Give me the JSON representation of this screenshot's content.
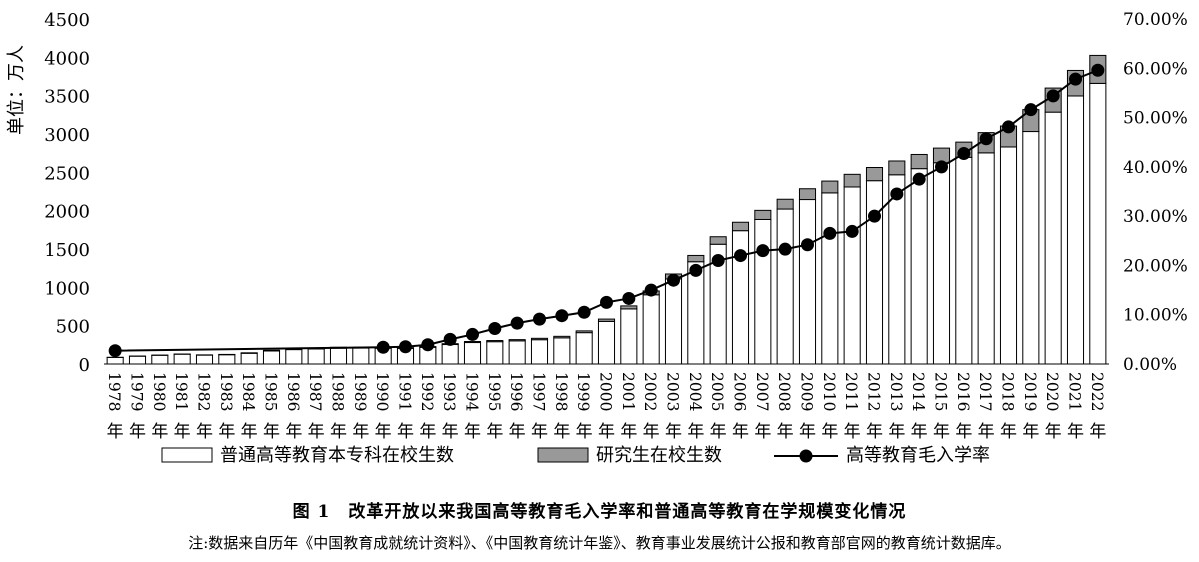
{
  "chart_data": {
    "type": "bar",
    "stacked": true,
    "categories": [
      "1978年",
      "1979年",
      "1980年",
      "1981年",
      "1982年",
      "1983年",
      "1984年",
      "1985年",
      "1986年",
      "1987年",
      "1988年",
      "1989年",
      "1990年",
      "1991年",
      "1992年",
      "1993年",
      "1994年",
      "1995年",
      "1996年",
      "1997年",
      "1998年",
      "1999年",
      "2000年",
      "2001年",
      "2002年",
      "2003年",
      "2004年",
      "2005年",
      "2006年",
      "2007年",
      "2008年",
      "2009年",
      "2010年",
      "2011年",
      "2012年",
      "2013年",
      "2014年",
      "2015年",
      "2016年",
      "2017年",
      "2018年",
      "2019年",
      "2020年",
      "2021年",
      "2022年"
    ],
    "series": [
      {
        "name": "普通高等教育本专科在校生数",
        "type": "bar",
        "axis": "left",
        "color": "#ffffff",
        "values": [
          86,
          102,
          114,
          128,
          116,
          121,
          140,
          170,
          188,
          196,
          207,
          208,
          206,
          204,
          218,
          254,
          280,
          291,
          302,
          317,
          341,
          409,
          556,
          719,
          903,
          1109,
          1334,
          1562,
          1739,
          1885,
          2021,
          2145,
          2232,
          2309,
          2391,
          2468,
          2548,
          2625,
          2696,
          2754,
          2831,
          3032,
          3285,
          3496,
          3660
        ]
      },
      {
        "name": "研究生在校生数",
        "type": "bar",
        "axis": "left",
        "color": "#999999",
        "values": [
          1,
          2,
          2,
          2,
          3,
          4,
          6,
          9,
          11,
          12,
          11,
          10,
          9,
          9,
          9,
          11,
          13,
          15,
          16,
          18,
          20,
          23,
          30,
          39,
          50,
          65,
          82,
          98,
          110,
          119,
          128,
          141,
          154,
          165,
          172,
          180,
          185,
          191,
          198,
          264,
          273,
          286,
          314,
          333,
          365
        ]
      },
      {
        "name": "高等教育毛入学率",
        "type": "line",
        "axis": "right",
        "color": "#000000",
        "x": [
          "1978年",
          "1990年",
          "1991年",
          "1992年",
          "1993年",
          "1994年",
          "1995年",
          "1996年",
          "1997年",
          "1998年",
          "1999年",
          "2000年",
          "2001年",
          "2002年",
          "2003年",
          "2004年",
          "2005年",
          "2006年",
          "2007年",
          "2008年",
          "2009年",
          "2010年",
          "2011年",
          "2012年",
          "2013年",
          "2014年",
          "2015年",
          "2016年",
          "2017年",
          "2018年",
          "2019年",
          "2020年",
          "2021年",
          "2022年"
        ],
        "values": [
          2.7,
          3.4,
          3.5,
          3.9,
          5.0,
          6.0,
          7.2,
          8.3,
          9.1,
          9.8,
          10.5,
          12.5,
          13.3,
          15.0,
          17.0,
          19.0,
          21.0,
          22.0,
          23.0,
          23.3,
          24.2,
          26.5,
          26.9,
          30.0,
          34.5,
          37.5,
          40.0,
          42.7,
          45.7,
          48.1,
          51.6,
          54.4,
          57.8,
          59.6
        ]
      }
    ],
    "ylabel": "单位：万人",
    "ylim": [
      0,
      4500
    ],
    "yticks": [
      "0",
      "500",
      "1000",
      "1500",
      "2000",
      "2500",
      "3000",
      "3500",
      "4000",
      "4500"
    ],
    "y2lim": [
      0,
      70
    ],
    "y2ticks": [
      "0.00%",
      "10.00%",
      "20.00%",
      "30.00%",
      "40.00%",
      "50.00%",
      "60.00%",
      "70.00%"
    ],
    "grid": false,
    "legend_position": "bottom",
    "title": "",
    "xlabel": ""
  },
  "caption": {
    "title": "图 1　改革开放以来我国高等教育毛入学率和普通高等教育在学规模变化情况",
    "note": "注:数据来自历年《中国教育成就统计资料》、《中国教育统计年鉴》、教育事业发展统计公报和教育部官网的教育统计数据库。"
  }
}
